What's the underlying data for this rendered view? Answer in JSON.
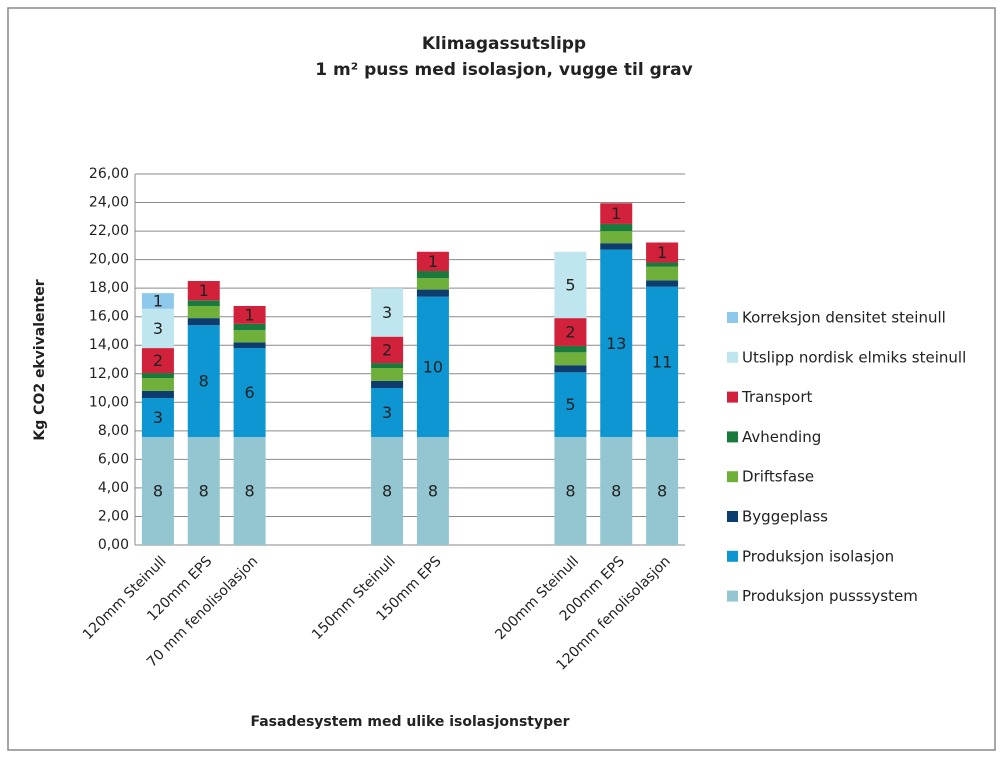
{
  "chart_data": {
    "type": "stacked_bar",
    "title": "Klimagassutslipp",
    "subtitle": "1 m² puss med isolasjon, vugge til grav",
    "x_label": "Fasadesystem med ulike isolasjonstyper",
    "y_label": "Kg CO2 ekvivalenter",
    "categories": [
      "120mm Steinull",
      "120mm EPS",
      "70 mm fenolisolasjon",
      null,
      null,
      "150mm Steinull",
      "150mm EPS",
      null,
      null,
      "200mm Steinull",
      "200mm EPS",
      "120mm fenolisolasjon"
    ],
    "ylim": [
      0,
      26
    ],
    "yticks": [
      {
        "value": 0,
        "label": "0,00"
      },
      {
        "value": 2,
        "label": "2,00"
      },
      {
        "value": 4,
        "label": "4,00"
      },
      {
        "value": 6,
        "label": "6,00"
      },
      {
        "value": 8,
        "label": "8,00"
      },
      {
        "value": 10,
        "label": "10,00"
      },
      {
        "value": 12,
        "label": "12,00"
      },
      {
        "value": 14,
        "label": "14,00"
      },
      {
        "value": 16,
        "label": "16,00"
      },
      {
        "value": 18,
        "label": "18,00"
      },
      {
        "value": 20,
        "label": "20,00"
      },
      {
        "value": 22,
        "label": "22,00"
      },
      {
        "value": 24,
        "label": "24,00"
      },
      {
        "value": 26,
        "label": "26,00"
      }
    ],
    "grid": true,
    "legend": "right",
    "series": [
      {
        "name": "Produksjon pusssystem",
        "color": "#93c6d0",
        "values": [
          7.57,
          7.57,
          7.57,
          null,
          null,
          7.57,
          7.57,
          null,
          null,
          7.57,
          7.57,
          7.57
        ],
        "value_labels": [
          "8",
          "8",
          "8",
          null,
          null,
          "8",
          "8",
          null,
          null,
          "8",
          "8",
          "8"
        ]
      },
      {
        "name": "Produksjon isolasjon",
        "color": "#0d96d1",
        "values": [
          2.73,
          7.83,
          6.23,
          null,
          null,
          3.43,
          9.83,
          null,
          null,
          4.53,
          13.13,
          10.53
        ],
        "value_labels": [
          "3",
          "8",
          "6",
          null,
          null,
          "3",
          "10",
          null,
          null,
          "5",
          "13",
          "11"
        ]
      },
      {
        "name": "Byggeplass",
        "color": "#0d3d6e",
        "values": [
          0.5,
          0.5,
          0.4,
          null,
          null,
          0.5,
          0.5,
          null,
          null,
          0.5,
          0.45,
          0.45
        ]
      },
      {
        "name": "Driftsfase",
        "color": "#6fb03b",
        "values": [
          0.9,
          0.85,
          0.85,
          null,
          null,
          0.9,
          0.8,
          null,
          null,
          0.9,
          0.85,
          0.95
        ]
      },
      {
        "name": "Avhending",
        "color": "#1a7a3e",
        "values": [
          0.35,
          0.4,
          0.45,
          null,
          null,
          0.35,
          0.5,
          null,
          null,
          0.45,
          0.5,
          0.3
        ]
      },
      {
        "name": "Transport",
        "color": "#d2213b",
        "values": [
          1.75,
          1.35,
          1.25,
          null,
          null,
          1.85,
          1.35,
          null,
          null,
          1.95,
          1.45,
          1.4
        ],
        "value_labels": [
          "2",
          "1",
          "1",
          null,
          null,
          "2",
          "1",
          null,
          null,
          "2",
          "1",
          "1"
        ]
      },
      {
        "name": "Utslipp nordisk elmiks steinull",
        "color": "#bfe6ee",
        "values": [
          2.75,
          null,
          null,
          null,
          null,
          3.4,
          null,
          null,
          null,
          4.65,
          null,
          null
        ],
        "value_labels": [
          "3",
          null,
          null,
          null,
          null,
          "3",
          null,
          null,
          null,
          "5",
          null,
          null
        ]
      },
      {
        "name": "Korreksjon densitet steinull",
        "color": "#8ec9ec",
        "values": [
          1.1,
          null,
          null,
          null,
          null,
          null,
          null,
          null,
          null,
          null,
          null,
          null
        ],
        "value_labels": [
          "1",
          null,
          null,
          null,
          null,
          null,
          null,
          null,
          null,
          null,
          null,
          null
        ]
      }
    ]
  }
}
